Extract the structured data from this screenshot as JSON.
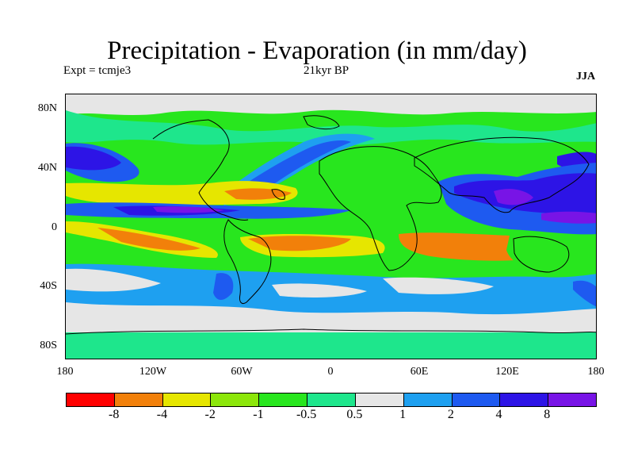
{
  "title": "Precipitation - Evaporation (in mm/day)",
  "experiment_label": "Expt = tcmje3",
  "period_label": "21kyr BP",
  "season_label": "JJA",
  "y_axis_labels": [
    "80N",
    "40N",
    "0",
    "40S",
    "80S"
  ],
  "x_axis_labels": [
    "180",
    "120W",
    "60W",
    "0",
    "60E",
    "120E",
    "180"
  ],
  "colorbar": {
    "colors": [
      "#ff0000",
      "#f2800a",
      "#e6e600",
      "#8ce60a",
      "#28e61e",
      "#1ee68c",
      "#e6e6e6",
      "#1ea0f0",
      "#1e5af0",
      "#2d14e6",
      "#7814e6"
    ],
    "labels": [
      "-8",
      "-4",
      "-2",
      "-1",
      "-0.5",
      "0.5",
      "1",
      "2",
      "4",
      "8"
    ]
  },
  "map_colors": {
    "background": "#28e61e",
    "neutral": "#1ee68c",
    "gray": "#e6e6e6",
    "light_blue": "#1ea0f0",
    "blue": "#1e5af0",
    "dark_blue": "#2d14e6",
    "purple": "#7814e6",
    "yellow": "#e6e600",
    "lime": "#8ce60a",
    "orange": "#f2800a"
  }
}
